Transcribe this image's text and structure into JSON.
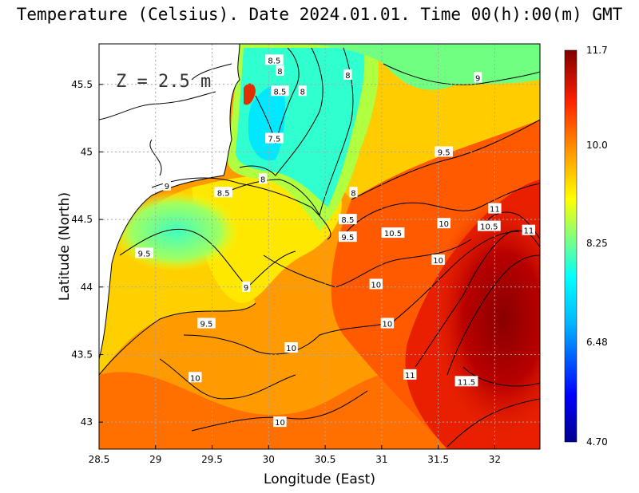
{
  "title": "Temperature (Celsius). Date 2024.01.01. Time 00(h):00(m) GMT",
  "depth_label": "Z = 2.5 m",
  "x_axis_label": "Longitude (East)",
  "y_axis_label": "Latitude (North)",
  "chart_data": {
    "type": "heatmap",
    "variable": "Temperature (Celsius)",
    "date": "2024.01.01",
    "time": "00(h):00(m) GMT",
    "depth": "Z = 2.5 m",
    "xlabel": "Longitude (East)",
    "ylabel": "Latitude (North)",
    "xlim": [
      28.5,
      32.4
    ],
    "ylim": [
      42.8,
      45.8
    ],
    "x_ticks": [
      "28.5",
      "29",
      "29.5",
      "30",
      "30.5",
      "31",
      "31.5",
      "32"
    ],
    "y_ticks": [
      "43",
      "43.5",
      "44",
      "44.5",
      "45",
      "45.5"
    ],
    "colorbar": {
      "min": 4.7,
      "max": 11.7,
      "ticks": [
        "11.7",
        "10.0",
        "8.25",
        "6.48",
        "4.70"
      ]
    },
    "grid": true,
    "contour_levels": [
      7.5,
      8,
      8.5,
      9,
      9.5,
      10,
      10.5,
      11,
      11.5
    ],
    "contour_labels": [
      {
        "lon": 30.05,
        "lat": 45.68,
        "value": "8.5"
      },
      {
        "lon": 30.1,
        "lat": 45.6,
        "value": "8"
      },
      {
        "lon": 30.7,
        "lat": 45.57,
        "value": "8"
      },
      {
        "lon": 31.85,
        "lat": 45.55,
        "value": "9"
      },
      {
        "lon": 30.1,
        "lat": 45.45,
        "value": "8.5"
      },
      {
        "lon": 30.3,
        "lat": 45.45,
        "value": "8"
      },
      {
        "lon": 30.05,
        "lat": 45.1,
        "value": "7.5"
      },
      {
        "lon": 31.55,
        "lat": 45.0,
        "value": "9.5"
      },
      {
        "lon": 29.95,
        "lat": 44.8,
        "value": "8"
      },
      {
        "lon": 29.6,
        "lat": 44.7,
        "value": "8.5"
      },
      {
        "lon": 29.1,
        "lat": 44.75,
        "value": "9"
      },
      {
        "lon": 30.75,
        "lat": 44.7,
        "value": "8"
      },
      {
        "lon": 32.0,
        "lat": 44.58,
        "value": "11"
      },
      {
        "lon": 31.55,
        "lat": 44.47,
        "value": "10"
      },
      {
        "lon": 31.95,
        "lat": 44.45,
        "value": "10.5"
      },
      {
        "lon": 30.7,
        "lat": 44.5,
        "value": "8.5"
      },
      {
        "lon": 32.3,
        "lat": 44.42,
        "value": "11"
      },
      {
        "lon": 31.1,
        "lat": 44.4,
        "value": "10.5"
      },
      {
        "lon": 30.7,
        "lat": 44.37,
        "value": "9.5"
      },
      {
        "lon": 28.9,
        "lat": 44.25,
        "value": "9.5"
      },
      {
        "lon": 31.5,
        "lat": 44.2,
        "value": "10"
      },
      {
        "lon": 30.95,
        "lat": 44.02,
        "value": "10"
      },
      {
        "lon": 29.8,
        "lat": 44.0,
        "value": "9"
      },
      {
        "lon": 31.05,
        "lat": 43.73,
        "value": "10"
      },
      {
        "lon": 29.45,
        "lat": 43.73,
        "value": "9.5"
      },
      {
        "lon": 30.2,
        "lat": 43.55,
        "value": "10"
      },
      {
        "lon": 31.25,
        "lat": 43.35,
        "value": "11"
      },
      {
        "lon": 29.35,
        "lat": 43.33,
        "value": "10"
      },
      {
        "lon": 31.75,
        "lat": 43.3,
        "value": "11.5"
      },
      {
        "lon": 30.1,
        "lat": 43.0,
        "value": "10"
      }
    ]
  },
  "colors": {
    "cold": "#00008f",
    "mid": "#ffff00",
    "warm": "#800000",
    "land": "#ffffff",
    "grid": "#aaaaaa"
  }
}
